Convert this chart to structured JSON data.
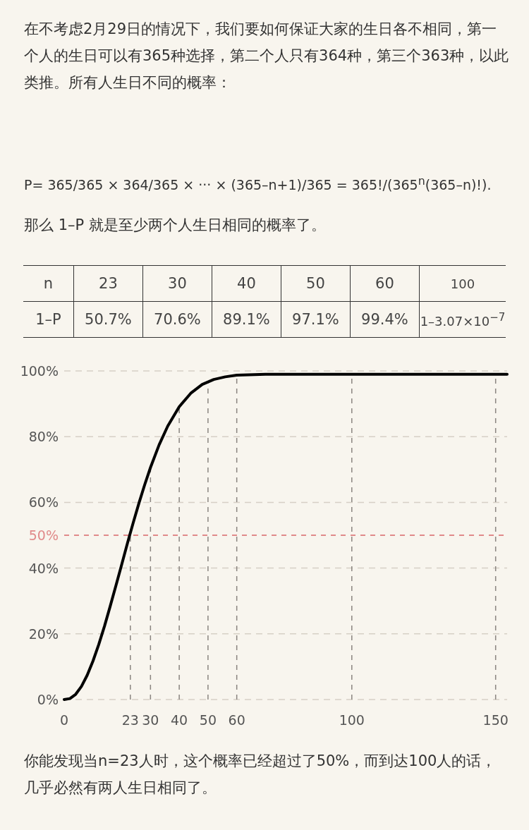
{
  "chart_data": {
    "type": "line",
    "title": "在不考虑2月29日的情况下，我们要如何保证大家的生日各不相同，第一个人的生日可以有365种选择，第二个人只有364种，第三个363种，以此类推。所有人生日不同的概率：",
    "subtitle": "P= 365/365 × 364/365 × ··· × (365–n+1)/365 = 365!/(365$^{n}$(365–n)!).",
    "annotations": [
      "那么 1–P 就是至少两个人生日相同的概率了。",
      "n",
      "23",
      "30",
      "40",
      "50",
      "60",
      "100",
      "1–P",
      "50.7%",
      "70.6%",
      "89.1%",
      "97.1%",
      "99.4%",
      "1–3.07×10$^{−7}$",
      "你能发现当n=23人时，这个概率已经超过了50%，而到达100人的话，几乎必然有两人生日相同了。"
    ],
    "x": [
      0,
      2,
      4,
      6,
      8,
      10,
      12,
      14,
      16,
      18,
      20,
      22,
      24,
      26,
      28,
      30,
      33,
      36,
      40,
      44,
      48,
      52,
      56,
      60,
      70,
      80,
      100,
      154
    ],
    "series": [
      {
        "color": "#000000",
        "values": [
          0,
          0.3,
          1.6,
          4,
          7.4,
          11.7,
          16.7,
          22.3,
          28.4,
          34.7,
          41.1,
          47.6,
          53.8,
          59.8,
          65.4,
          70.6,
          77.5,
          83.2,
          89.1,
          93.2,
          95.9,
          97.4,
          98.2,
          98.7,
          99,
          99,
          99,
          99
        ]
      }
    ],
    "xlim": [
      0,
      154
    ],
    "ylim": [
      0,
      100
    ],
    "xticks": [
      0,
      23,
      30,
      40,
      50,
      60,
      100,
      150
    ],
    "yticks": [
      {
        "value": 0,
        "label": "0%"
      },
      {
        "value": 20,
        "label": "20%"
      },
      {
        "value": 40,
        "label": "40%"
      },
      {
        "value": 60,
        "label": "60%"
      },
      {
        "value": 80,
        "label": "80%"
      },
      {
        "value": 100,
        "label": "100%"
      }
    ],
    "ref_lines": [
      {
        "axis": "y",
        "value": 50,
        "label": "50%",
        "color": "#e08a8a",
        "line_style": "dashed"
      },
      {
        "axis": "x",
        "value": 23,
        "color": "#8a8580",
        "line_style": "dashed"
      },
      {
        "axis": "x",
        "value": 30,
        "color": "#8a8580",
        "line_style": "dashed"
      },
      {
        "axis": "x",
        "value": 40,
        "color": "#8a8580",
        "line_style": "dashed"
      },
      {
        "axis": "x",
        "value": 50,
        "color": "#8a8580",
        "line_style": "dashed"
      },
      {
        "axis": "x",
        "value": 60,
        "color": "#8a8580",
        "line_style": "dashed"
      },
      {
        "axis": "x",
        "value": 100,
        "color": "#8a8580",
        "line_style": "dashed"
      },
      {
        "axis": "x",
        "value": 150,
        "color": "#8a8580",
        "line_style": "dashed"
      }
    ],
    "grid": "y",
    "marker": "none",
    "line_style": "solid"
  }
}
